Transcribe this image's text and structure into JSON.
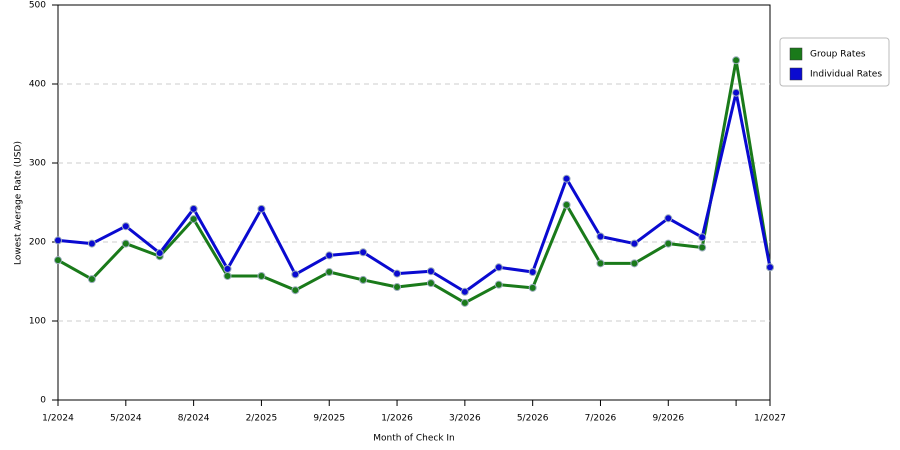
{
  "chart_data": {
    "type": "line",
    "x_label": "Month of Check In",
    "y_label": "Lowest Average Rate (USD)",
    "categories": [
      "1/2024",
      null,
      "5/2024",
      null,
      "8/2024",
      null,
      "2/2025",
      null,
      "9/2025",
      null,
      "1/2026",
      null,
      "3/2026",
      null,
      "5/2026",
      null,
      "7/2026",
      null,
      "9/2026",
      null,
      null,
      "1/2027"
    ],
    "series": [
      {
        "name": "Group Rates",
        "color": "#1a7a1a",
        "values": [
          177,
          153,
          198,
          182,
          229,
          157,
          157,
          139,
          162,
          152,
          143,
          148,
          123,
          146,
          142,
          247,
          173,
          173,
          198,
          193,
          430,
          168
        ]
      },
      {
        "name": "Individual Rates",
        "color": "#0a0ad0",
        "values": [
          202,
          198,
          220,
          186,
          242,
          166,
          242,
          159,
          183,
          187,
          160,
          163,
          137,
          168,
          162,
          280,
          207,
          198,
          230,
          206,
          389,
          168
        ]
      }
    ],
    "ylim": [
      0,
      500
    ],
    "yticks": [
      0,
      100,
      200,
      300,
      400,
      500
    ],
    "grid": true,
    "legend": "right"
  }
}
